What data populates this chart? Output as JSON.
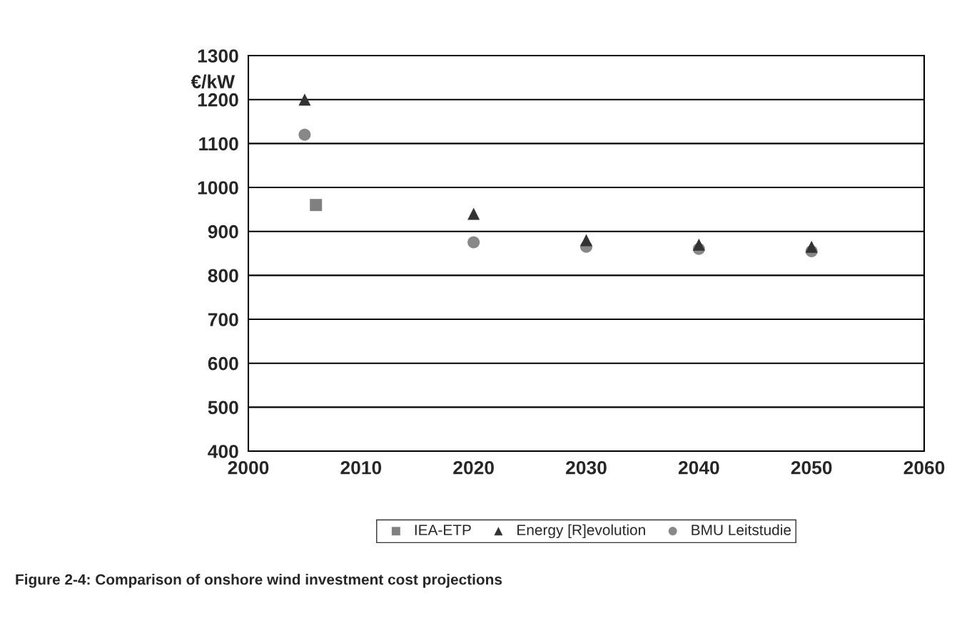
{
  "chart_data": {
    "type": "scatter",
    "title": "Figure 2-4: Comparison of onshore wind investment cost projections",
    "ylabel": "€/kW",
    "series": [
      {
        "name": "IEA-ETP",
        "color": "#808080",
        "marker": "square",
        "x": [
          2006
        ],
        "values": [
          960
        ]
      },
      {
        "name": "Energy [R]evolution",
        "color": "#333333",
        "marker": "triangle",
        "x": [
          2005,
          2020,
          2030,
          2040,
          2050
        ],
        "values": [
          1200,
          940,
          880,
          870,
          865
        ]
      },
      {
        "name": "BMU Leitstudie",
        "color": "#888888",
        "marker": "circle",
        "x": [
          2005,
          2020,
          2030,
          2040,
          2050
        ],
        "values": [
          1120,
          875,
          865,
          860,
          855
        ]
      }
    ],
    "xlim": [
      2000,
      2060
    ],
    "xticks": [
      2000,
      2010,
      2020,
      2030,
      2040,
      2050,
      2060
    ],
    "ylim": [
      400,
      1300
    ],
    "yticks": [
      400,
      500,
      600,
      700,
      800,
      900,
      1000,
      1100,
      1200,
      1300
    ],
    "grid": "y",
    "legend": "bottom"
  }
}
